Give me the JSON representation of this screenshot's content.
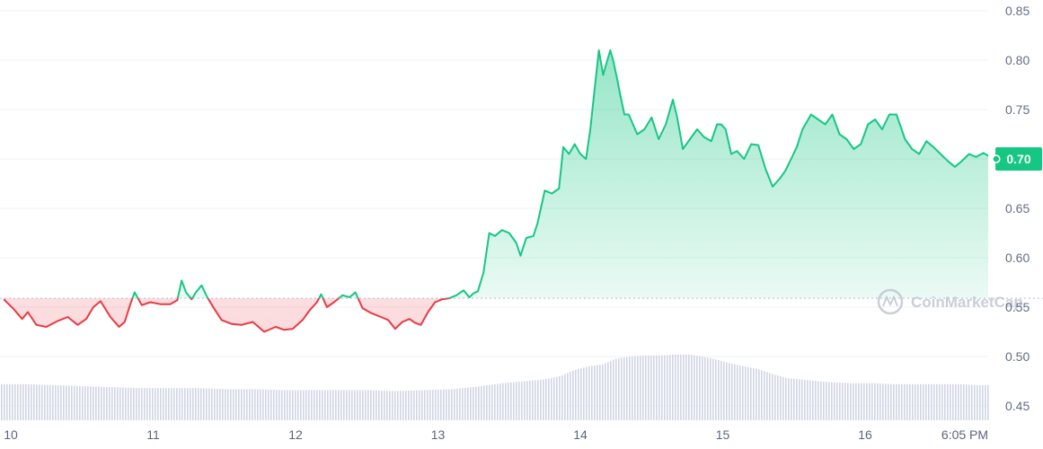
{
  "chart_data": {
    "type": "area",
    "title": "",
    "xlabel": "",
    "ylabel": "",
    "x_tick_labels": [
      "10",
      "11",
      "12",
      "13",
      "14",
      "15",
      "16",
      "6:05 PM"
    ],
    "y_tick_labels": [
      "0.45",
      "0.50",
      "0.55",
      "0.60",
      "0.65",
      "0.70",
      "0.75",
      "0.80",
      "0.85"
    ],
    "ylim": [
      0.45,
      0.85
    ],
    "xlim_days": [
      9.95,
      16.95
    ],
    "grid": true,
    "baseline": 0.559,
    "current_price_label": "0.70",
    "colors": {
      "up": "#16c784",
      "down": "#ea3943",
      "volume": "#cfd6e4",
      "baseline": "#b6bfcc",
      "text": "#616e85"
    },
    "price_series": {
      "x": [
        9.95,
        10.02,
        10.08,
        10.12,
        10.18,
        10.25,
        10.33,
        10.4,
        10.47,
        10.53,
        10.58,
        10.63,
        10.7,
        10.76,
        10.8,
        10.84,
        10.87,
        10.92,
        10.98,
        11.05,
        11.12,
        11.17,
        11.2,
        11.23,
        11.27,
        11.3,
        11.34,
        11.38,
        11.43,
        11.48,
        11.55,
        11.62,
        11.7,
        11.78,
        11.86,
        11.92,
        11.98,
        12.05,
        12.1,
        12.15,
        12.18,
        12.22,
        12.27,
        12.33,
        12.38,
        12.42,
        12.47,
        12.53,
        12.6,
        12.65,
        12.7,
        12.75,
        12.8,
        12.84,
        12.88,
        12.93,
        12.98,
        13.03,
        13.08,
        13.13,
        13.18,
        13.22,
        13.25,
        13.28,
        13.32,
        13.36,
        13.4,
        13.45,
        13.5,
        13.55,
        13.58,
        13.62,
        13.67,
        13.7,
        13.75,
        13.8,
        13.85,
        13.88,
        13.92,
        13.96,
        14.0,
        14.04,
        14.07,
        14.1,
        14.13,
        14.16,
        14.18,
        14.21,
        14.23,
        14.26,
        14.28,
        14.31,
        14.34,
        14.37,
        14.4,
        14.45,
        14.5,
        14.55,
        14.6,
        14.65,
        14.68,
        14.72,
        14.77,
        14.82,
        14.87,
        14.92,
        14.96,
        14.99,
        15.02,
        15.06,
        15.1,
        15.15,
        15.2,
        15.25,
        15.3,
        15.35,
        15.4,
        15.44,
        15.48,
        15.52,
        15.56,
        15.62,
        15.67,
        15.72,
        15.77,
        15.82,
        15.87,
        15.92,
        15.97,
        16.02,
        16.07,
        16.12,
        16.17,
        16.22,
        16.28,
        16.33,
        16.38,
        16.43,
        16.48,
        16.53,
        16.58,
        16.63,
        16.68,
        16.73,
        16.78,
        16.83,
        16.88,
        16.92
      ],
      "y": [
        0.558,
        0.548,
        0.538,
        0.545,
        0.532,
        0.53,
        0.536,
        0.54,
        0.532,
        0.538,
        0.55,
        0.556,
        0.54,
        0.53,
        0.535,
        0.553,
        0.565,
        0.552,
        0.555,
        0.553,
        0.553,
        0.557,
        0.577,
        0.565,
        0.558,
        0.565,
        0.572,
        0.56,
        0.548,
        0.537,
        0.533,
        0.532,
        0.535,
        0.525,
        0.53,
        0.527,
        0.528,
        0.537,
        0.547,
        0.555,
        0.563,
        0.55,
        0.555,
        0.562,
        0.56,
        0.565,
        0.549,
        0.544,
        0.54,
        0.537,
        0.528,
        0.535,
        0.538,
        0.534,
        0.532,
        0.545,
        0.555,
        0.558,
        0.559,
        0.562,
        0.567,
        0.56,
        0.564,
        0.566,
        0.585,
        0.625,
        0.622,
        0.628,
        0.625,
        0.615,
        0.602,
        0.62,
        0.622,
        0.635,
        0.668,
        0.665,
        0.67,
        0.712,
        0.705,
        0.715,
        0.705,
        0.7,
        0.73,
        0.77,
        0.81,
        0.785,
        0.795,
        0.81,
        0.8,
        0.78,
        0.765,
        0.745,
        0.745,
        0.735,
        0.725,
        0.73,
        0.742,
        0.72,
        0.735,
        0.76,
        0.742,
        0.71,
        0.72,
        0.73,
        0.722,
        0.718,
        0.735,
        0.735,
        0.73,
        0.705,
        0.708,
        0.7,
        0.715,
        0.714,
        0.69,
        0.672,
        0.68,
        0.688,
        0.7,
        0.712,
        0.73,
        0.745,
        0.74,
        0.735,
        0.745,
        0.725,
        0.72,
        0.71,
        0.715,
        0.735,
        0.74,
        0.73,
        0.745,
        0.745,
        0.72,
        0.71,
        0.705,
        0.718,
        0.712,
        0.705,
        0.698,
        0.692,
        0.698,
        0.705,
        0.702,
        0.706,
        0.702,
        0.7
      ]
    },
    "volume_series": {
      "x": [
        9.95,
        10.1,
        10.3,
        10.5,
        10.7,
        10.9,
        11.1,
        11.3,
        11.5,
        11.7,
        11.9,
        12.1,
        12.3,
        12.5,
        12.7,
        12.9,
        13.1,
        13.3,
        13.45,
        13.6,
        13.75,
        13.85,
        13.95,
        14.05,
        14.15,
        14.25,
        14.35,
        14.45,
        14.55,
        14.65,
        14.75,
        14.85,
        14.95,
        15.05,
        15.15,
        15.25,
        15.35,
        15.45,
        15.6,
        15.75,
        15.9,
        16.05,
        16.2,
        16.35,
        16.5,
        16.65,
        16.8,
        16.92
      ],
      "y": [
        0.472,
        0.472,
        0.471,
        0.47,
        0.469,
        0.468,
        0.468,
        0.468,
        0.467,
        0.467,
        0.466,
        0.466,
        0.466,
        0.466,
        0.465,
        0.466,
        0.467,
        0.47,
        0.473,
        0.475,
        0.477,
        0.48,
        0.486,
        0.49,
        0.492,
        0.498,
        0.5,
        0.501,
        0.501,
        0.502,
        0.502,
        0.5,
        0.497,
        0.493,
        0.49,
        0.487,
        0.482,
        0.478,
        0.476,
        0.474,
        0.473,
        0.473,
        0.472,
        0.472,
        0.472,
        0.472,
        0.471,
        0.471
      ]
    },
    "watermark": "CoinMarketCap"
  }
}
